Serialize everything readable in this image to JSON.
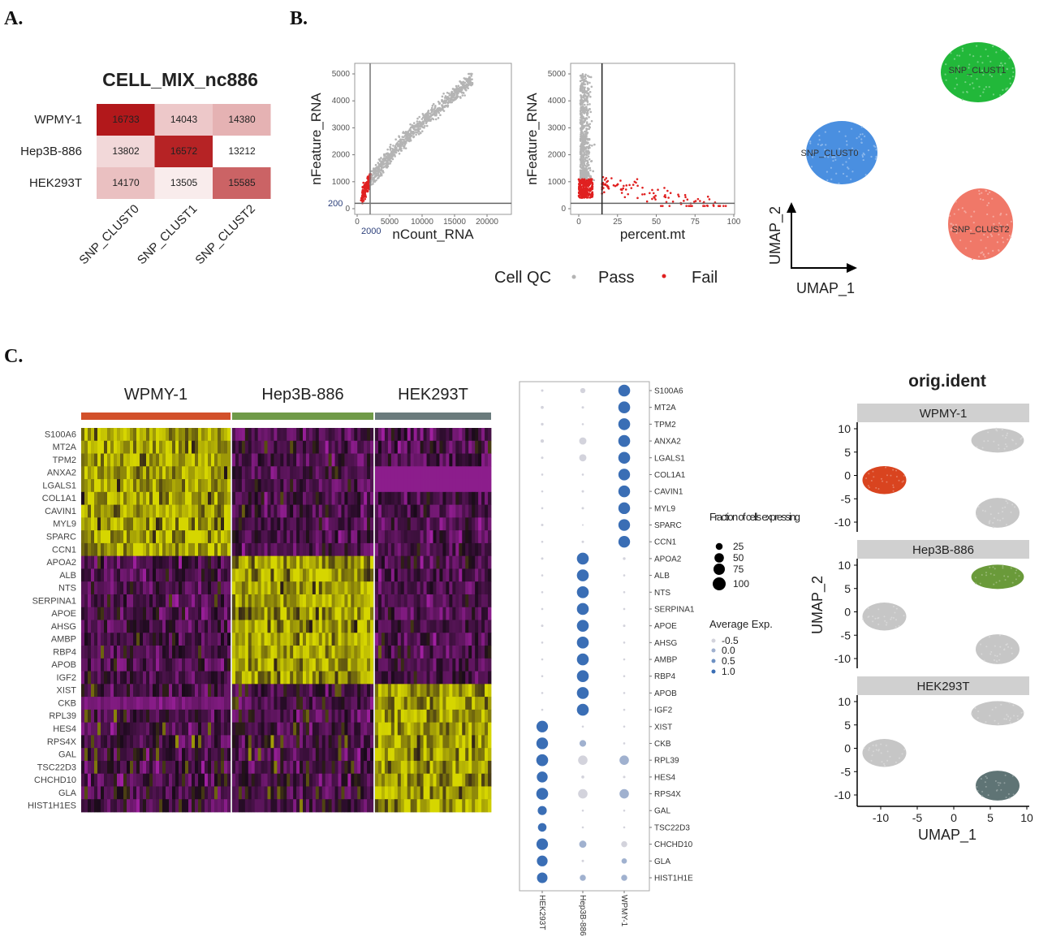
{
  "panels": {
    "a": "A.",
    "b": "B.",
    "c": "C."
  },
  "chart_data": [
    {
      "type": "heatmap",
      "title": "CELL_MIX_nc886",
      "rows": [
        "WPMY-1",
        "Hep3B-886",
        "HEK293T"
      ],
      "columns": [
        "SNP_CLUST0",
        "SNP_CLUST1",
        "SNP_CLUST2"
      ],
      "values": [
        [
          16733,
          14043,
          14380
        ],
        [
          13802,
          16572,
          13212
        ],
        [
          14170,
          13505,
          15585
        ]
      ],
      "color_low": "#ffffff",
      "color_high": "#b2181b"
    },
    {
      "type": "scatter",
      "xlabel": "nCount_RNA",
      "ylabel": "nFeature_RNA",
      "xticks": [
        "0",
        "5000",
        "10000",
        "15000",
        "20000"
      ],
      "yticks": [
        "0",
        "1000",
        "2000",
        "3000",
        "4000",
        "5000"
      ],
      "xlim": [
        0,
        23000
      ],
      "ylim": [
        0,
        5000
      ],
      "threshold_x_label": "2000",
      "threshold_y_label": "200",
      "threshold_x": 2000,
      "threshold_y": 200
    },
    {
      "type": "scatter",
      "xlabel": "percent.mt",
      "ylabel": "nFeature_RNA",
      "xticks": [
        "0",
        "25",
        "50",
        "75",
        "100"
      ],
      "yticks": [
        "0",
        "1000",
        "2000",
        "3000",
        "4000",
        "5000"
      ],
      "xlim": [
        0,
        100
      ],
      "ylim": [
        0,
        5000
      ],
      "threshold_x": 15,
      "threshold_y": 200
    },
    {
      "type": "scatter",
      "subtype": "umap",
      "xlabel": "UMAP_1",
      "ylabel": "UMAP_2",
      "clusters": [
        {
          "label": "SNP_CLUST0",
          "color": "#4a8fe0"
        },
        {
          "label": "SNP_CLUST1",
          "color": "#22b83a"
        },
        {
          "label": "SNP_CLUST2",
          "color": "#f07868"
        }
      ]
    },
    {
      "type": "heatmap",
      "subtype": "expression",
      "groups": [
        {
          "name": "WPMY-1",
          "color": "#d2502a"
        },
        {
          "name": "Hep3B-886",
          "color": "#6f9a48"
        },
        {
          "name": "HEK293T",
          "color": "#6a7b7c"
        }
      ],
      "genes": [
        "S100A6",
        "MT2A",
        "TPM2",
        "ANXA2",
        "LGALS1",
        "COL1A1",
        "CAVIN1",
        "MYL9",
        "SPARC",
        "CCN1",
        "APOA2",
        "ALB",
        "NTS",
        "SERPINA1",
        "APOE",
        "AHSG",
        "AMBP",
        "RBP4",
        "APOB",
        "IGF2",
        "XIST",
        "CKB",
        "RPL39",
        "HES4",
        "RPS4X",
        "GAL",
        "TSC22D3",
        "CHCHD10",
        "GLA",
        "HIST1H1ES"
      ],
      "colors": {
        "low": "#a020a0",
        "mid": "#1a0a1a",
        "high": "#d6d600"
      }
    },
    {
      "type": "dotplot",
      "x": [
        "HEK293T",
        "Hep3B-886",
        "WPMY-1"
      ],
      "genes": [
        "S100A6",
        "MT2A",
        "TPM2",
        "ANXA2",
        "LGALS1",
        "COL1A1",
        "CAVIN1",
        "MYL9",
        "SPARC",
        "CCN1",
        "APOA2",
        "ALB",
        "NTS",
        "SERPINA1",
        "APOE",
        "AHSG",
        "AMBP",
        "RBP4",
        "APOB",
        "IGF2",
        "XIST",
        "CKB",
        "RPL39",
        "HES4",
        "RPS4X",
        "GAL",
        "TSC22D3",
        "CHCHD10",
        "GLA",
        "HIST1H1E"
      ],
      "pct_expressing": [
        [
          4,
          18,
          95
        ],
        [
          6,
          4,
          95
        ],
        [
          5,
          3,
          95
        ],
        [
          8,
          35,
          95
        ],
        [
          4,
          35,
          95
        ],
        [
          3,
          3,
          92
        ],
        [
          3,
          4,
          93
        ],
        [
          3,
          4,
          93
        ],
        [
          4,
          2,
          92
        ],
        [
          3,
          4,
          92
        ],
        [
          4,
          95,
          5
        ],
        [
          3,
          95,
          3
        ],
        [
          3,
          95,
          3
        ],
        [
          3,
          95,
          3
        ],
        [
          4,
          95,
          4
        ],
        [
          3,
          95,
          3
        ],
        [
          3,
          95,
          3
        ],
        [
          3,
          95,
          3
        ],
        [
          3,
          95,
          3
        ],
        [
          3,
          95,
          3
        ],
        [
          90,
          3,
          3
        ],
        [
          92,
          30,
          3
        ],
        [
          95,
          60,
          60
        ],
        [
          80,
          6,
          4
        ],
        [
          95,
          60,
          60
        ],
        [
          55,
          3,
          3
        ],
        [
          50,
          3,
          3
        ],
        [
          90,
          35,
          25
        ],
        [
          78,
          4,
          20
        ],
        [
          75,
          25,
          25
        ]
      ],
      "avg_exp": [
        [
          -0.5,
          -0.5,
          1.0
        ],
        [
          -0.5,
          -0.5,
          1.0
        ],
        [
          -0.5,
          -0.5,
          1.0
        ],
        [
          -0.5,
          -0.5,
          1.0
        ],
        [
          -0.5,
          -0.5,
          1.0
        ],
        [
          -0.5,
          -0.5,
          1.0
        ],
        [
          -0.5,
          -0.5,
          1.0
        ],
        [
          -0.5,
          -0.5,
          1.0
        ],
        [
          -0.5,
          -0.5,
          1.0
        ],
        [
          -0.5,
          -0.5,
          1.0
        ],
        [
          -0.5,
          1.0,
          -0.5
        ],
        [
          -0.5,
          1.0,
          -0.5
        ],
        [
          -0.5,
          1.0,
          -0.5
        ],
        [
          -0.5,
          1.0,
          -0.5
        ],
        [
          -0.5,
          1.0,
          -0.5
        ],
        [
          -0.5,
          1.0,
          -0.5
        ],
        [
          -0.5,
          1.0,
          -0.5
        ],
        [
          -0.5,
          1.0,
          -0.5
        ],
        [
          -0.5,
          1.0,
          -0.5
        ],
        [
          -0.5,
          1.0,
          -0.5
        ],
        [
          1.0,
          -0.5,
          -0.5
        ],
        [
          1.0,
          0.0,
          -0.5
        ],
        [
          1.0,
          -0.5,
          0.0
        ],
        [
          1.0,
          -0.5,
          -0.5
        ],
        [
          1.0,
          -0.5,
          0.0
        ],
        [
          1.0,
          -0.5,
          -0.5
        ],
        [
          1.0,
          -0.5,
          -0.5
        ],
        [
          1.0,
          0.0,
          -0.5
        ],
        [
          1.0,
          -0.5,
          0.0
        ],
        [
          1.0,
          0.0,
          0.0
        ]
      ],
      "size_legend_title": "Fraction of cells expressing",
      "size_legend": [
        "25",
        "50",
        "75",
        "100"
      ],
      "color_legend_title": "Average Exp.",
      "color_legend": [
        "-0.5",
        "0.0",
        "0.5",
        "1.0"
      ],
      "color_low": "#d3d3dc",
      "color_high": "#3a6eb5"
    },
    {
      "type": "scatter",
      "subtype": "umap-facets",
      "title": "orig.ident",
      "xlabel": "UMAP_1",
      "ylabel": "UMAP_2",
      "xticks": [
        "-10",
        "-5",
        "0",
        "5",
        "10"
      ],
      "yticks": [
        "10",
        "5",
        "0",
        "-5",
        "-10"
      ],
      "xlim": [
        -13,
        10
      ],
      "ylim": [
        -12,
        11
      ],
      "facets": [
        {
          "name": "WPMY-1",
          "color": "#d9441f",
          "cluster_center": [
            -9.5,
            -1
          ]
        },
        {
          "name": "Hep3B-886",
          "color": "#6a9a3a",
          "cluster_center": [
            6,
            7.5
          ]
        },
        {
          "name": "HEK293T",
          "color": "#5f7475",
          "cluster_center": [
            6,
            -8
          ]
        }
      ],
      "background_color": "#c6c6c6"
    }
  ],
  "legend_qc": {
    "title": "Cell QC",
    "pass": "Pass",
    "fail": "Fail",
    "pass_color": "#b4b4b4",
    "fail_color": "#e02020"
  }
}
